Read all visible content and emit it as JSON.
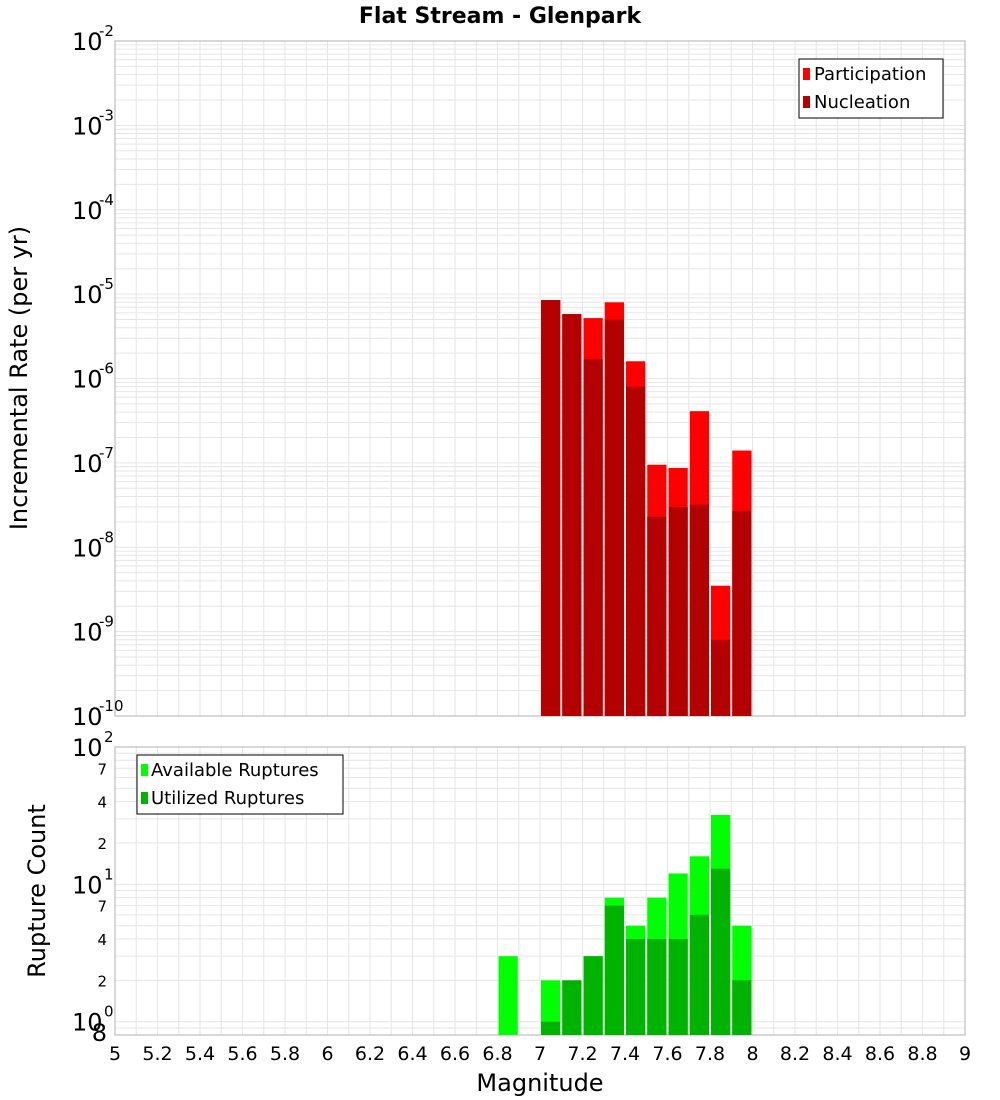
{
  "title": "Flat Stream - Glenpark",
  "colors": {
    "participation": "#ff0000",
    "nucleation": "#b30000",
    "available": "#00ff00",
    "utilized": "#00b300",
    "grid": "#e6e6e6",
    "frame": "#b0b0b0"
  },
  "chart_data": [
    {
      "type": "bar",
      "title": "Flat Stream - Glenpark",
      "xlabel": "Magnitude",
      "ylabel": "Incremental Rate (per yr)",
      "xlim": [
        5,
        9
      ],
      "ylim": [
        1e-10,
        0.01
      ],
      "yscale": "log",
      "grid": true,
      "legend_position": "top-right",
      "bin_width": 0.1,
      "x": [
        7.05,
        7.15,
        7.25,
        7.35,
        7.45,
        7.55,
        7.65,
        7.75,
        7.85,
        7.95
      ],
      "series": [
        {
          "name": "Participation",
          "color": "#ff0000",
          "values": [
            8.5e-06,
            5.8e-06,
            5.2e-06,
            8e-06,
            1.6e-06,
            9.5e-08,
            8.7e-08,
            4.1e-07,
            3.5e-09,
            1.4e-07
          ]
        },
        {
          "name": "Nucleation",
          "color": "#b30000",
          "values": [
            8.5e-06,
            5.8e-06,
            1.7e-06,
            5e-06,
            8e-07,
            2.3e-08,
            3e-08,
            3.2e-08,
            8e-10,
            2.7e-08
          ]
        }
      ],
      "y_ticks": [
        {
          "base": "10",
          "exp": "-10"
        },
        {
          "base": "10",
          "exp": "-9"
        },
        {
          "base": "10",
          "exp": "-8"
        },
        {
          "base": "10",
          "exp": "-7"
        },
        {
          "base": "10",
          "exp": "-6"
        },
        {
          "base": "10",
          "exp": "-5"
        },
        {
          "base": "10",
          "exp": "-4"
        },
        {
          "base": "10",
          "exp": "-3"
        },
        {
          "base": "10",
          "exp": "-2"
        }
      ]
    },
    {
      "type": "bar",
      "xlabel": "Magnitude",
      "ylabel": "Rupture Count",
      "xlim": [
        5,
        9
      ],
      "ylim": [
        0.8,
        100
      ],
      "yscale": "log",
      "grid": true,
      "legend_position": "top-left",
      "bin_width": 0.1,
      "x": [
        6.85,
        7.05,
        7.15,
        7.25,
        7.35,
        7.45,
        7.55,
        7.65,
        7.75,
        7.85,
        7.95
      ],
      "series": [
        {
          "name": "Available Ruptures",
          "color": "#00ff00",
          "values": [
            3,
            2,
            2,
            3,
            8,
            5,
            8,
            12,
            16,
            32,
            5
          ]
        },
        {
          "name": "Utilized Ruptures",
          "color": "#00b300",
          "values": [
            0,
            1,
            2,
            3,
            7,
            4,
            4,
            4,
            6,
            13,
            2
          ]
        }
      ],
      "y_ticks": [
        {
          "base": "10",
          "exp": "0"
        },
        {
          "base": "10",
          "exp": "1"
        },
        {
          "base": "10",
          "exp": "2"
        }
      ],
      "y_minor_ticks": [
        {
          "value": 0.8,
          "label": "8"
        },
        {
          "value": 2,
          "label": "2"
        },
        {
          "value": 4,
          "label": "4"
        },
        {
          "value": 7,
          "label": "7"
        },
        {
          "value": 20,
          "label": "2"
        },
        {
          "value": 40,
          "label": "4"
        },
        {
          "value": 70,
          "label": "7"
        }
      ],
      "x_ticks": [
        "5",
        "5.2",
        "5.4",
        "5.6",
        "5.8",
        "6",
        "6.2",
        "6.4",
        "6.6",
        "6.8",
        "7",
        "7.2",
        "7.4",
        "7.6",
        "7.8",
        "8",
        "8.2",
        "8.4",
        "8.6",
        "8.8",
        "9"
      ]
    }
  ]
}
